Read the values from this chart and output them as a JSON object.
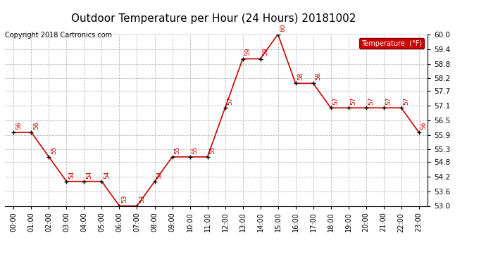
{
  "title": "Outdoor Temperature per Hour (24 Hours) 20181002",
  "copyright": "Copyright 2018 Cartronics.com",
  "legend_label": "Temperature  (°F)",
  "hours": [
    "00:00",
    "01:00",
    "02:00",
    "03:00",
    "04:00",
    "05:00",
    "06:00",
    "07:00",
    "08:00",
    "09:00",
    "10:00",
    "11:00",
    "12:00",
    "13:00",
    "14:00",
    "15:00",
    "16:00",
    "17:00",
    "18:00",
    "19:00",
    "20:00",
    "21:00",
    "22:00",
    "23:00"
  ],
  "temps": [
    56,
    56,
    55,
    54,
    54,
    54,
    53,
    53,
    54,
    55,
    55,
    55,
    57,
    59,
    59,
    60,
    58,
    58,
    57,
    57,
    57,
    57,
    57,
    56
  ],
  "ylim": [
    53.0,
    60.0
  ],
  "yticks": [
    53.0,
    53.6,
    54.2,
    54.8,
    55.3,
    55.9,
    56.5,
    57.1,
    57.7,
    58.2,
    58.8,
    59.4,
    60.0
  ],
  "line_color": "#cc0000",
  "marker_color": "#000000",
  "annotation_color": "#cc0000",
  "background_color": "#ffffff",
  "grid_color": "#bbbbbb",
  "title_fontsize": 11,
  "copyright_fontsize": 7,
  "legend_bg": "#cc0000",
  "legend_text_color": "#ffffff",
  "tick_fontsize": 7,
  "ytick_fontsize": 7.5
}
